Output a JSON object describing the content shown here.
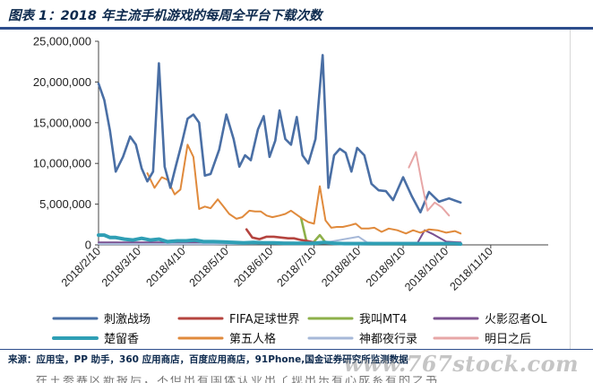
{
  "header": {
    "title": "图表 1：2018 年主流手机游戏的每周全平台下载次数"
  },
  "footer": {
    "source": "来源：应用宝，PP 助手，360 应用商店，百度应用商店，91Phone,国金证券研究所监测数据",
    "watermark": "www.767stock.com",
    "cutoff_text": "在王参赛区新报后，不但出有国体认业出了现出乐有心成系有的之书"
  },
  "chart_data": {
    "type": "line",
    "title": "图表 1：2018 年主流手机游戏的每周全平台下载次数",
    "xlabel": "",
    "ylabel": "",
    "ylim": [
      0,
      25000000
    ],
    "yticks": [
      "0",
      "5,000,000",
      "10,000,000",
      "15,000,000",
      "20,000,000",
      "25,000,000"
    ],
    "xlim": [
      "2018-02-10",
      "2018-12-20"
    ],
    "xticks": [
      "2018/2/10",
      "2018/3/10",
      "2018/4/10",
      "2018/5/10",
      "2018/6/10",
      "2018/7/10",
      "2018/8/10",
      "2018/9/10",
      "2018/10/10",
      "2018/11/10"
    ],
    "grid": false,
    "legend_position": "bottom",
    "series": [
      {
        "name": "刺激战场",
        "color": "#4a6fa5",
        "width": 2.6,
        "points": [
          [
            "2018-02-10",
            19800000
          ],
          [
            "2018-02-14",
            17800000
          ],
          [
            "2018-02-18",
            14000000
          ],
          [
            "2018-02-22",
            9000000
          ],
          [
            "2018-02-27",
            10800000
          ],
          [
            "2018-03-04",
            13300000
          ],
          [
            "2018-03-08",
            12300000
          ],
          [
            "2018-03-12",
            9400000
          ],
          [
            "2018-03-16",
            7800000
          ],
          [
            "2018-03-20",
            9000000
          ],
          [
            "2018-03-24",
            22300000
          ],
          [
            "2018-03-28",
            9600000
          ],
          [
            "2018-04-01",
            7000000
          ],
          [
            "2018-04-05",
            9800000
          ],
          [
            "2018-04-09",
            12500000
          ],
          [
            "2018-04-13",
            15500000
          ],
          [
            "2018-04-17",
            16000000
          ],
          [
            "2018-04-21",
            15000000
          ],
          [
            "2018-04-25",
            8500000
          ],
          [
            "2018-04-29",
            8700000
          ],
          [
            "2018-05-05",
            11700000
          ],
          [
            "2018-05-10",
            16000000
          ],
          [
            "2018-05-15",
            13000000
          ],
          [
            "2018-05-19",
            9600000
          ],
          [
            "2018-05-23",
            11000000
          ],
          [
            "2018-05-27",
            10400000
          ],
          [
            "2018-06-01",
            14200000
          ],
          [
            "2018-06-05",
            15800000
          ],
          [
            "2018-06-09",
            10800000
          ],
          [
            "2018-06-13",
            12800000
          ],
          [
            "2018-06-16",
            16500000
          ],
          [
            "2018-06-20",
            13000000
          ],
          [
            "2018-06-24",
            12300000
          ],
          [
            "2018-06-28",
            15700000
          ],
          [
            "2018-07-02",
            11000000
          ],
          [
            "2018-07-06",
            10000000
          ],
          [
            "2018-07-11",
            13000000
          ],
          [
            "2018-07-16",
            23300000
          ],
          [
            "2018-07-20",
            7000000
          ],
          [
            "2018-07-24",
            11000000
          ],
          [
            "2018-07-28",
            11800000
          ],
          [
            "2018-08-01",
            11300000
          ],
          [
            "2018-08-05",
            9000000
          ],
          [
            "2018-08-09",
            11900000
          ],
          [
            "2018-08-14",
            11000000
          ],
          [
            "2018-08-19",
            7500000
          ],
          [
            "2018-08-24",
            6700000
          ],
          [
            "2018-08-29",
            6600000
          ],
          [
            "2018-09-03",
            5500000
          ],
          [
            "2018-09-10",
            8300000
          ],
          [
            "2018-09-16",
            6000000
          ],
          [
            "2018-09-22",
            4000000
          ],
          [
            "2018-09-28",
            6500000
          ],
          [
            "2018-10-05",
            5300000
          ],
          [
            "2018-10-12",
            5700000
          ],
          [
            "2018-10-20",
            5200000
          ]
        ]
      },
      {
        "name": "第五人格",
        "color": "#e08a3c",
        "width": 2.0,
        "points": [
          [
            "2018-03-16",
            8800000
          ],
          [
            "2018-03-21",
            7000000
          ],
          [
            "2018-03-26",
            8300000
          ],
          [
            "2018-03-30",
            8000000
          ],
          [
            "2018-04-04",
            6200000
          ],
          [
            "2018-04-08",
            6800000
          ],
          [
            "2018-04-13",
            12300000
          ],
          [
            "2018-04-17",
            10800000
          ],
          [
            "2018-04-21",
            4400000
          ],
          [
            "2018-04-25",
            4700000
          ],
          [
            "2018-04-29",
            4500000
          ],
          [
            "2018-05-04",
            5600000
          ],
          [
            "2018-05-08",
            4700000
          ],
          [
            "2018-05-12",
            3800000
          ],
          [
            "2018-05-17",
            3200000
          ],
          [
            "2018-05-21",
            3400000
          ],
          [
            "2018-05-26",
            4200000
          ],
          [
            "2018-05-30",
            4100000
          ],
          [
            "2018-06-03",
            4100000
          ],
          [
            "2018-06-07",
            3600000
          ],
          [
            "2018-06-11",
            3400000
          ],
          [
            "2018-06-16",
            3600000
          ],
          [
            "2018-06-20",
            3800000
          ],
          [
            "2018-06-24",
            4200000
          ],
          [
            "2018-06-28",
            3700000
          ],
          [
            "2018-07-02",
            3200000
          ],
          [
            "2018-07-06",
            2800000
          ],
          [
            "2018-07-10",
            2600000
          ],
          [
            "2018-07-14",
            7200000
          ],
          [
            "2018-07-18",
            3000000
          ],
          [
            "2018-07-22",
            2100000
          ],
          [
            "2018-07-26",
            2200000
          ],
          [
            "2018-07-30",
            2200000
          ],
          [
            "2018-08-04",
            2400000
          ],
          [
            "2018-08-08",
            2600000
          ],
          [
            "2018-08-12",
            2000000
          ],
          [
            "2018-08-17",
            2000000
          ],
          [
            "2018-08-21",
            2100000
          ],
          [
            "2018-08-26",
            1600000
          ],
          [
            "2018-08-31",
            2000000
          ],
          [
            "2018-09-06",
            1800000
          ],
          [
            "2018-09-12",
            1400000
          ],
          [
            "2018-09-17",
            1800000
          ],
          [
            "2018-09-22",
            1500000
          ],
          [
            "2018-09-28",
            1900000
          ],
          [
            "2018-10-04",
            1800000
          ],
          [
            "2018-10-10",
            1500000
          ],
          [
            "2018-10-16",
            1700000
          ],
          [
            "2018-10-20",
            1400000
          ]
        ]
      },
      {
        "name": "楚留香",
        "color": "#2f9fb5",
        "width": 4.0,
        "points": [
          [
            "2018-02-10",
            1200000
          ],
          [
            "2018-02-14",
            1200000
          ],
          [
            "2018-02-18",
            900000
          ],
          [
            "2018-02-22",
            900000
          ],
          [
            "2018-02-28",
            700000
          ],
          [
            "2018-03-06",
            600000
          ],
          [
            "2018-03-12",
            800000
          ],
          [
            "2018-03-18",
            600000
          ],
          [
            "2018-03-24",
            700000
          ],
          [
            "2018-03-30",
            400000
          ],
          [
            "2018-04-06",
            500000
          ],
          [
            "2018-04-12",
            500000
          ],
          [
            "2018-04-18",
            600000
          ],
          [
            "2018-04-24",
            400000
          ],
          [
            "2018-05-01",
            400000
          ],
          [
            "2018-05-08",
            350000
          ],
          [
            "2018-05-15",
            300000
          ],
          [
            "2018-05-22",
            250000
          ],
          [
            "2018-05-29",
            300000
          ],
          [
            "2018-06-05",
            250000
          ],
          [
            "2018-06-12",
            250000
          ],
          [
            "2018-06-19",
            200000
          ],
          [
            "2018-06-26",
            200000
          ],
          [
            "2018-07-03",
            200000
          ],
          [
            "2018-07-10",
            200000
          ],
          [
            "2018-07-17",
            300000
          ],
          [
            "2018-07-24",
            200000
          ],
          [
            "2018-07-31",
            150000
          ],
          [
            "2018-08-07",
            150000
          ],
          [
            "2018-08-14",
            150000
          ],
          [
            "2018-08-21",
            150000
          ],
          [
            "2018-08-28",
            150000
          ],
          [
            "2018-09-04",
            150000
          ],
          [
            "2018-09-11",
            150000
          ],
          [
            "2018-09-18",
            150000
          ],
          [
            "2018-09-25",
            150000
          ],
          [
            "2018-10-02",
            150000
          ],
          [
            "2018-10-09",
            150000
          ],
          [
            "2018-10-16",
            150000
          ],
          [
            "2018-10-20",
            100000
          ]
        ]
      },
      {
        "name": "FIFA足球世界",
        "color": "#b5443f",
        "width": 2.6,
        "points": [
          [
            "2018-05-24",
            1900000
          ],
          [
            "2018-05-28",
            900000
          ],
          [
            "2018-06-02",
            700000
          ],
          [
            "2018-06-07",
            1000000
          ],
          [
            "2018-06-12",
            1000000
          ],
          [
            "2018-06-17",
            900000
          ],
          [
            "2018-06-22",
            800000
          ],
          [
            "2018-06-26",
            800000
          ],
          [
            "2018-07-01",
            600000
          ],
          [
            "2018-07-05",
            500000
          ],
          [
            "2018-07-10",
            300000
          ],
          [
            "2018-07-16",
            200000
          ],
          [
            "2018-07-22",
            150000
          ],
          [
            "2018-07-28",
            120000
          ],
          [
            "2018-08-05",
            100000
          ],
          [
            "2018-08-15",
            80000
          ],
          [
            "2018-08-25",
            80000
          ],
          [
            "2018-09-05",
            80000
          ],
          [
            "2018-09-15",
            60000
          ],
          [
            "2018-09-25",
            50000
          ],
          [
            "2018-10-05",
            50000
          ],
          [
            "2018-10-20",
            40000
          ]
        ]
      },
      {
        "name": "我叫MT4",
        "color": "#8db04a",
        "width": 2.6,
        "points": [
          [
            "2018-07-01",
            3300000
          ],
          [
            "2018-07-05",
            200000
          ],
          [
            "2018-07-09",
            200000
          ],
          [
            "2018-07-14",
            1200000
          ],
          [
            "2018-07-18",
            300000
          ],
          [
            "2018-07-24",
            200000
          ],
          [
            "2018-07-30",
            120000
          ],
          [
            "2018-08-10",
            100000
          ],
          [
            "2018-08-20",
            80000
          ],
          [
            "2018-09-01",
            80000
          ],
          [
            "2018-09-15",
            60000
          ],
          [
            "2018-10-01",
            60000
          ],
          [
            "2018-10-20",
            50000
          ]
        ]
      },
      {
        "name": "神都夜行录",
        "color": "#a6b8d8",
        "width": 2.0,
        "points": [
          [
            "2018-02-10",
            100000
          ],
          [
            "2018-05-01",
            100000
          ],
          [
            "2018-06-01",
            150000
          ],
          [
            "2018-07-15",
            200000
          ],
          [
            "2018-08-10",
            1000000
          ],
          [
            "2018-08-16",
            300000
          ],
          [
            "2018-08-25",
            250000
          ],
          [
            "2018-09-05",
            150000
          ],
          [
            "2018-09-15",
            200000
          ],
          [
            "2018-09-25",
            100000
          ],
          [
            "2018-10-20",
            100000
          ]
        ]
      },
      {
        "name": "火影忍者OL",
        "color": "#7a5090",
        "width": 2.0,
        "points": [
          [
            "2018-02-10",
            300000
          ],
          [
            "2018-03-10",
            300000
          ],
          [
            "2018-04-10",
            300000
          ],
          [
            "2018-05-10",
            300000
          ],
          [
            "2018-06-10",
            300000
          ],
          [
            "2018-07-10",
            250000
          ],
          [
            "2018-08-10",
            250000
          ],
          [
            "2018-09-10",
            250000
          ],
          [
            "2018-09-20",
            250000
          ],
          [
            "2018-09-25",
            1800000
          ],
          [
            "2018-10-01",
            1300000
          ],
          [
            "2018-10-10",
            400000
          ],
          [
            "2018-10-20",
            300000
          ]
        ]
      },
      {
        "name": "明日之后",
        "color": "#e7a6a6",
        "width": 2.0,
        "points": [
          [
            "2018-09-14",
            9500000
          ],
          [
            "2018-09-19",
            11400000
          ],
          [
            "2018-09-23",
            7600000
          ],
          [
            "2018-09-27",
            4200000
          ],
          [
            "2018-10-02",
            5200000
          ],
          [
            "2018-10-07",
            4600000
          ],
          [
            "2018-10-12",
            3600000
          ]
        ]
      }
    ]
  }
}
